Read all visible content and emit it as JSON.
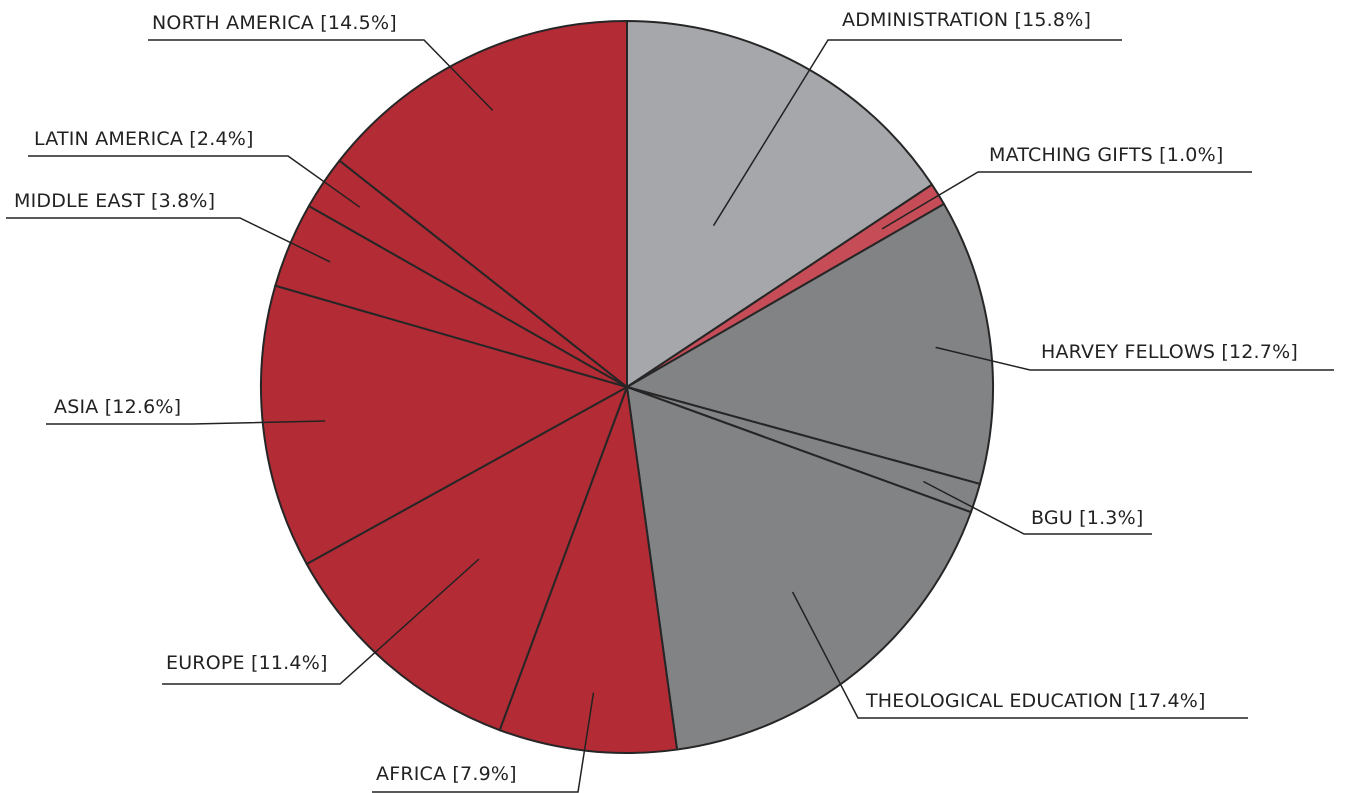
{
  "chart_data": {
    "type": "pie",
    "start_angle": "12 o'clock",
    "direction": "clockwise",
    "slices": [
      {
        "label": "ADMINISTRATION [15.8%]",
        "value": 15.8,
        "color": "#a6a7ab"
      },
      {
        "label": "MATCHING GIFTS [1.0%]",
        "value": 1.0,
        "color": "#c64d57"
      },
      {
        "label": "HARVEY FELLOWS [12.7%]",
        "value": 12.7,
        "color": "#828385"
      },
      {
        "label": "BGU [1.3%]",
        "value": 1.3,
        "color": "#828385"
      },
      {
        "label": "THEOLOGICAL EDUCATION [17.4%]",
        "value": 17.4,
        "color": "#828385"
      },
      {
        "label": "AFRICA [7.9%]",
        "value": 7.9,
        "color": "#b22b35"
      },
      {
        "label": "EUROPE [11.4%]",
        "value": 11.4,
        "color": "#b22b35"
      },
      {
        "label": "ASIA [12.6%]",
        "value": 12.6,
        "color": "#b22b35"
      },
      {
        "label": "MIDDLE EAST [3.8%]",
        "value": 3.8,
        "color": "#b22b35"
      },
      {
        "label": "LATIN AMERICA [2.4%]",
        "value": 2.4,
        "color": "#b22b35"
      },
      {
        "label": "NORTH AMERICA [14.5%]",
        "value": 14.5,
        "color": "#b22b35"
      }
    ]
  }
}
